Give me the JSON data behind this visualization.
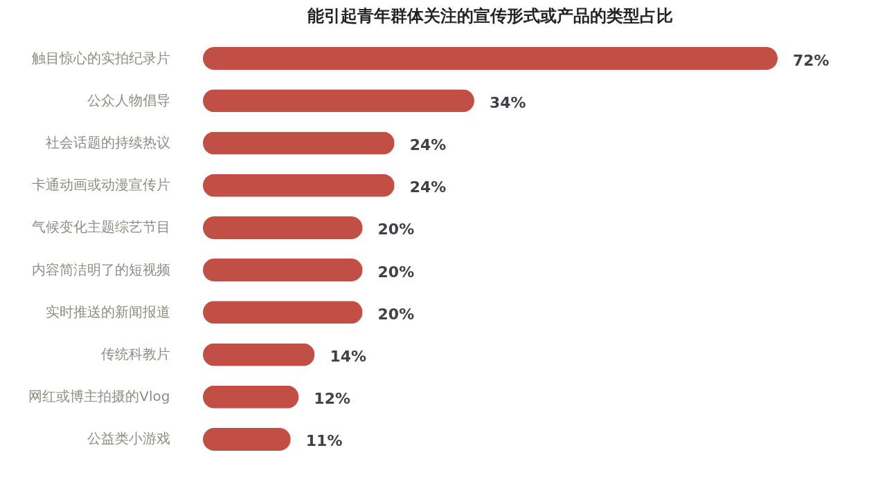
{
  "chart_data": {
    "type": "bar",
    "orientation": "horizontal",
    "title": "能引起青年群体关注的宣传形式或产品的类型占比",
    "categories": [
      "触目惊心的实拍纪录片",
      "公众人物倡导",
      "社会话题的持续热议",
      "卡通动画或动漫宣传片",
      "气候变化主题综艺节目",
      "内容简洁明了的短视频",
      "实时推送的新闻报道",
      "传统科教片",
      "网红或博主拍摄的Vlog",
      "公益类小游戏"
    ],
    "series": [
      {
        "color": "#c24f45",
        "values": [
          72,
          34,
          24,
          24,
          20,
          20,
          20,
          14,
          12,
          11
        ],
        "value_labels": [
          "72%",
          "34%",
          "24%",
          "24%",
          "20%",
          "20%",
          "20%",
          "14%",
          "12%",
          "11%"
        ]
      }
    ]
  }
}
